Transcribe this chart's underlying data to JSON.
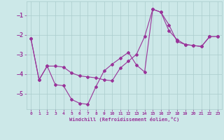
{
  "xlabel": "Windchill (Refroidissement éolien,°C)",
  "bg_color": "#cce8e8",
  "grid_color": "#aacccc",
  "line_color": "#993399",
  "line1_x": [
    0,
    1,
    2,
    3,
    4,
    5,
    6,
    7,
    8,
    9,
    10,
    11,
    12,
    13,
    14,
    15,
    16,
    17,
    18,
    19,
    20,
    21,
    22,
    23
  ],
  "line1_y": [
    -2.2,
    -4.3,
    -3.6,
    -4.55,
    -4.6,
    -5.3,
    -5.5,
    -5.55,
    -4.65,
    -3.85,
    -3.5,
    -3.2,
    -2.9,
    -3.55,
    -3.9,
    -0.7,
    -0.85,
    -1.8,
    -2.25,
    -2.5,
    -2.55,
    -2.6,
    -2.1,
    -2.1
  ],
  "line2_x": [
    0,
    1,
    2,
    3,
    4,
    5,
    6,
    7,
    8,
    9,
    10,
    11,
    12,
    13,
    14,
    15,
    16,
    17,
    18,
    19,
    20,
    21,
    22,
    23
  ],
  "line2_y": [
    -2.2,
    -4.3,
    -3.6,
    -3.6,
    -3.65,
    -3.95,
    -4.1,
    -4.15,
    -4.2,
    -4.3,
    -4.35,
    -3.7,
    -3.35,
    -3.0,
    -2.1,
    -0.7,
    -0.85,
    -1.5,
    -2.35,
    -2.5,
    -2.55,
    -2.6,
    -2.1,
    -2.1
  ],
  "ylim": [
    -5.8,
    -0.3
  ],
  "xlim": [
    -0.5,
    23.5
  ],
  "yticks": [
    -5,
    -4,
    -3,
    -2,
    -1
  ],
  "xticks": [
    0,
    1,
    2,
    3,
    4,
    5,
    6,
    7,
    8,
    9,
    10,
    11,
    12,
    13,
    14,
    15,
    16,
    17,
    18,
    19,
    20,
    21,
    22,
    23
  ]
}
